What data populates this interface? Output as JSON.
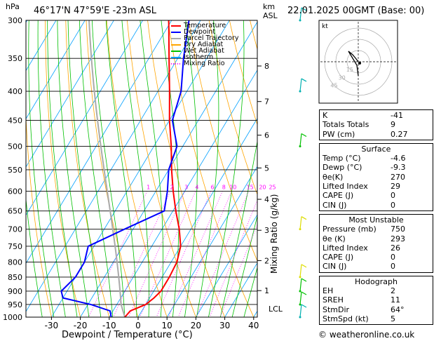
{
  "header": {
    "hpa_label": "hPa",
    "location": "46°17'N  47°59'E  -23m  ASL",
    "km_label": "km",
    "asl_label": "ASL",
    "datetime": "22.01.2025  00GMT  (Base: 00)"
  },
  "axes": {
    "xlabel": "Dewpoint / Temperature (°C)",
    "mixing_label": "Mixing Ratio (g/kg)",
    "lcl_label": "LCL",
    "footer": "© weatheronline.co.uk"
  },
  "legend": [
    {
      "name": "Temperature",
      "color": "#ff0000"
    },
    {
      "name": "Dewpoint",
      "color": "#0000ff"
    },
    {
      "name": "Parcel Trajectory",
      "color": "#aaaaaa"
    },
    {
      "name": "Dry Adiabat",
      "color": "#ffa500"
    },
    {
      "name": "Wet Adiabat",
      "color": "#00c000"
    },
    {
      "name": "Isotherm",
      "color": "#00a0ff"
    },
    {
      "name": "Mixing Ratio",
      "color": "#ff00ff"
    }
  ],
  "chart_data": {
    "type": "line",
    "title": "46°17'N  47°59'E  -23m  ASL",
    "xlabel": "Dewpoint / Temperature (°C)",
    "ylabel": "hPa",
    "xlim": [
      -40,
      40
    ],
    "ylim": [
      1000,
      300
    ],
    "pressure_levels": [
      300,
      350,
      400,
      450,
      500,
      550,
      600,
      650,
      700,
      750,
      800,
      850,
      900,
      950,
      1000
    ],
    "x_ticks": [
      -30,
      -20,
      -10,
      0,
      10,
      20,
      30,
      40
    ],
    "km_ticks": [
      {
        "label": "1",
        "p": 898
      },
      {
        "label": "2",
        "p": 795
      },
      {
        "label": "3",
        "p": 703
      },
      {
        "label": "4",
        "p": 620
      },
      {
        "label": "5",
        "p": 546
      },
      {
        "label": "6",
        "p": 478
      },
      {
        "label": "7",
        "p": 417
      },
      {
        "label": "8",
        "p": 361
      }
    ],
    "lcl_p": 950,
    "mixing_ratio_labels": [
      "1",
      "2",
      "3",
      "4",
      "6",
      "8",
      "10",
      "15",
      "20",
      "25"
    ],
    "mixing_ratio_values": [
      1,
      2,
      3,
      4,
      6,
      8,
      10,
      15,
      20,
      25
    ],
    "series": [
      {
        "name": "Temperature",
        "points": [
          [
            1000,
            -4.6
          ],
          [
            975,
            -4
          ],
          [
            950,
            0
          ],
          [
            925,
            1.5
          ],
          [
            900,
            2.5
          ],
          [
            850,
            2.5
          ],
          [
            800,
            2
          ],
          [
            750,
            0
          ],
          [
            700,
            -4
          ],
          [
            650,
            -9
          ],
          [
            600,
            -14
          ],
          [
            550,
            -19
          ],
          [
            500,
            -24
          ],
          [
            450,
            -30
          ],
          [
            400,
            -36
          ],
          [
            350,
            -43
          ],
          [
            300,
            -51
          ]
        ]
      },
      {
        "name": "Dewpoint",
        "points": [
          [
            1000,
            -9.3
          ],
          [
            975,
            -11
          ],
          [
            950,
            -19
          ],
          [
            925,
            -30
          ],
          [
            900,
            -32
          ],
          [
            850,
            -30
          ],
          [
            800,
            -30
          ],
          [
            750,
            -32
          ],
          [
            700,
            -23
          ],
          [
            650,
            -13
          ],
          [
            600,
            -16
          ],
          [
            550,
            -20
          ],
          [
            500,
            -22
          ],
          [
            450,
            -29
          ],
          [
            400,
            -32
          ],
          [
            350,
            -38
          ],
          [
            300,
            -44
          ]
        ]
      }
    ],
    "hodograph": {
      "label": "kt",
      "ring_labels": [
        "45",
        "30",
        "15"
      ]
    }
  },
  "indices": {
    "rows": [
      {
        "label": "K",
        "value": "-41"
      },
      {
        "label": "Totals Totals",
        "value": "9"
      },
      {
        "label": "PW (cm)",
        "value": "0.27"
      }
    ]
  },
  "surface": {
    "title": "Surface",
    "rows": [
      {
        "label": "Temp (°C)",
        "value": "-4.6"
      },
      {
        "label": "Dewp (°C)",
        "value": "-9.3"
      },
      {
        "label": "θe(K)",
        "value": "270"
      },
      {
        "label": "Lifted Index",
        "value": "29"
      },
      {
        "label": "CAPE (J)",
        "value": "0"
      },
      {
        "label": "CIN (J)",
        "value": "0"
      }
    ]
  },
  "unstable": {
    "title": "Most Unstable",
    "rows": [
      {
        "label": "Pressure (mb)",
        "value": "750"
      },
      {
        "label": "θe (K)",
        "value": "293"
      },
      {
        "label": "Lifted Index",
        "value": "26"
      },
      {
        "label": "CAPE (J)",
        "value": "0"
      },
      {
        "label": "CIN (J)",
        "value": "0"
      }
    ]
  },
  "hodograph_table": {
    "title": "Hodograph",
    "rows": [
      {
        "label": "EH",
        "value": "2"
      },
      {
        "label": "SREH",
        "value": "11"
      },
      {
        "label": "StmDir",
        "value": "64°"
      },
      {
        "label": "StmSpd (kt)",
        "value": "5"
      }
    ]
  }
}
